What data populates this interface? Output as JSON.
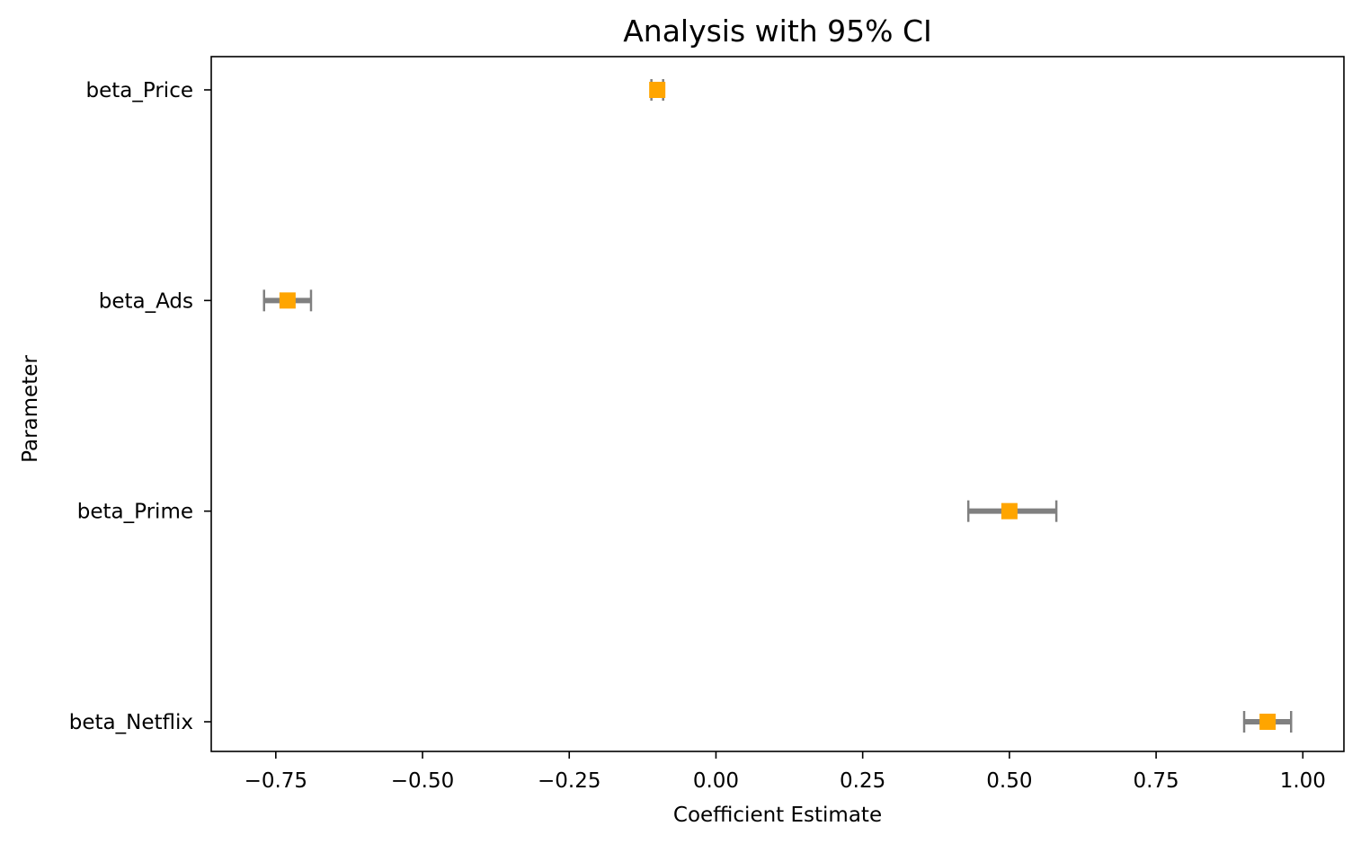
{
  "chart_data": {
    "type": "errorbar",
    "title": "Analysis with 95% CI",
    "xlabel": "Coefficient Estimate",
    "ylabel": "Parameter",
    "xlim": [
      -0.86,
      1.07
    ],
    "x_ticks": [
      -0.75,
      -0.5,
      -0.25,
      0.0,
      0.25,
      0.5,
      0.75,
      1.0
    ],
    "x_tick_labels": [
      "−0.75",
      "−0.50",
      "−0.25",
      "0.00",
      "0.25",
      "0.50",
      "0.75",
      "1.00"
    ],
    "categories": [
      "beta_Price",
      "beta_Ads",
      "beta_Prime",
      "beta_Netflix"
    ],
    "estimates": [
      -0.1,
      -0.73,
      0.5,
      0.94
    ],
    "ci_lower": [
      -0.11,
      -0.77,
      0.43,
      0.9
    ],
    "ci_upper": [
      -0.09,
      -0.69,
      0.58,
      0.98
    ],
    "grid": false,
    "colors": {
      "marker": "#FFA500",
      "errorbar": "#808080",
      "axes": "#000000"
    }
  }
}
